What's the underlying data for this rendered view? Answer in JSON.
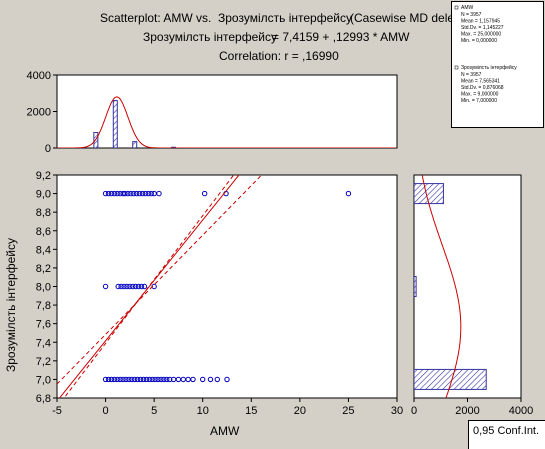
{
  "title": {
    "line1_left": "Scatterplot: AMW",
    "line1_vs": "vs.",
    "line1_right": "Зрозумілсть інтерфейсу",
    "line1_overlap": "(Casewise MD delet",
    "line2_left": "Зрозумілсть інтерфейсу",
    "line2_right": "= 7,4159 + ,12993 * AMW",
    "line3": "Correlation: r = ,16990"
  },
  "legend_box": {
    "series_x": {
      "name": "AMW",
      "lines": [
        "N = 3957",
        "Mean = 1,157945",
        "Std.Dv. = 1,145227",
        "Max. = 25,000000",
        "Min. = 0,000000"
      ]
    },
    "series_y": {
      "name": "Зрозумілсть інтерфейсу",
      "lines": [
        "N = 3957",
        "Mean = 7,565341",
        "Std.Dv. = 0,876068",
        "Max. = 9,000000",
        "Min. = 7,000000"
      ]
    }
  },
  "conf_label": "0,95 Conf.Int.",
  "colors": {
    "background": "#d4d0c8",
    "plot_area": "#ffffff",
    "point": "#0000c0",
    "fit_line": "#cc0000",
    "bar_fill": "#3333a0"
  },
  "chart_data": [
    {
      "type": "scatter",
      "name": "main",
      "xlabel": "AMW",
      "ylabel": "Зрозумілсть інтерфейсу",
      "xlim": [
        -5,
        30
      ],
      "ylim": [
        6.8,
        9.2
      ],
      "xticks": [
        "-5",
        "0",
        "5",
        "10",
        "15",
        "20",
        "25",
        "30"
      ],
      "yticks": [
        "6,8",
        "7,0",
        "7,2",
        "7,4",
        "7,6",
        "7,8",
        "8,0",
        "8,2",
        "8,4",
        "8,6",
        "8,8",
        "9,0",
        "9,2"
      ],
      "grid": false,
      "points": [
        {
          "y": 9,
          "x": [
            0,
            0.3,
            0.6,
            0.9,
            1.2,
            1.5,
            1.8,
            2.0,
            2.3,
            2.6,
            2.9,
            3.2,
            3.5,
            3.8,
            4.1,
            4.4,
            4.7,
            5.0,
            5.5,
            10.2,
            12.4,
            25
          ]
        },
        {
          "y": 8,
          "x": [
            0,
            1.3,
            1.6,
            1.9,
            2.2,
            2.5,
            2.8,
            3.1,
            3.4,
            3.7,
            4.0,
            5.0
          ]
        },
        {
          "y": 7,
          "x": [
            0,
            0.3,
            0.6,
            0.9,
            1.2,
            1.5,
            1.8,
            2.1,
            2.4,
            2.7,
            3.0,
            3.3,
            3.6,
            3.9,
            4.2,
            4.5,
            4.8,
            5.1,
            5.4,
            5.7,
            6.0,
            6.3,
            6.6,
            7.0,
            7.5,
            8.0,
            8.5,
            9.0,
            10.0,
            10.8,
            11.5,
            12.5
          ]
        }
      ],
      "fit": {
        "intercept": 7.4159,
        "slope": 0.12993
      },
      "conf_upper": [
        [
          -5,
          6.7
        ],
        [
          15,
          9.45
        ]
      ],
      "conf_lower": [
        [
          -5,
          6.95
        ],
        [
          17,
          9.3
        ]
      ]
    },
    {
      "type": "bar",
      "name": "x_histogram",
      "ylim": [
        0,
        4000
      ],
      "yticks": [
        "0",
        "2000",
        "4000"
      ],
      "bars": [
        {
          "x": -1,
          "value": 850
        },
        {
          "x": 1,
          "value": 2600
        },
        {
          "x": 3,
          "value": 350
        },
        {
          "x": 7,
          "value": 40
        }
      ],
      "normal_curve": {
        "mean": 1.157945,
        "sd": 1.145227,
        "peak": 2800
      }
    },
    {
      "type": "bar",
      "name": "y_histogram",
      "xlim": [
        0,
        4000
      ],
      "xticks": [
        "0",
        "2000",
        "4000"
      ],
      "bars": [
        {
          "y": 7,
          "value": 2700
        },
        {
          "y": 8,
          "value": 80
        },
        {
          "y": 9,
          "value": 1100
        }
      ],
      "normal_curve": {
        "mean": 7.565341,
        "sd": 0.876068,
        "peak": 1750
      }
    }
  ]
}
